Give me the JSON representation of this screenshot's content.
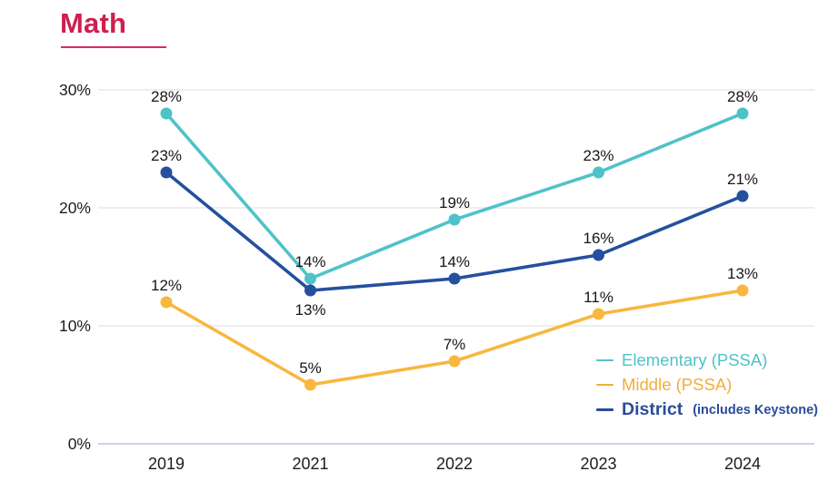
{
  "page": {
    "title": "Math",
    "title_color": "#CE1F4D",
    "underline_color": "#DB2B5B",
    "background": "#FFFFFF"
  },
  "chart_data": {
    "type": "line",
    "title": "Math",
    "categories": [
      "2019",
      "2021",
      "2022",
      "2023",
      "2024"
    ],
    "xlabel": "",
    "ylabel": "",
    "y_axis": {
      "ticks": [
        30,
        20,
        10,
        0
      ],
      "tick_suffix": "%",
      "min": 0,
      "max": 30,
      "grid": true,
      "grid_color": "#e8e8e8",
      "zero_line_color": "#c7cce7"
    },
    "data_label_suffix": "%",
    "series": [
      {
        "name": "Elementary (PSSA)",
        "color": "#4FC2C9",
        "values": [
          28,
          14,
          19,
          23,
          28
        ],
        "label_positions": [
          "above",
          "above",
          "above",
          "above",
          "above"
        ]
      },
      {
        "name": "Middle (PSSA)",
        "color": "#F8B73E",
        "values": [
          12,
          5,
          7,
          11,
          13
        ],
        "label_positions": [
          "above",
          "above",
          "above",
          "above",
          "above"
        ]
      },
      {
        "name": "District (includes Keystone)",
        "color": "#24509E",
        "values": [
          23,
          13,
          14,
          16,
          21
        ],
        "label_positions": [
          "above",
          "below",
          "above",
          "above",
          "above"
        ]
      }
    ],
    "legend": {
      "position": "bottom-right",
      "items": [
        {
          "label": "Elementary (PSSA)",
          "sublabel": "",
          "color": "#4FC2C9"
        },
        {
          "label": "Middle (PSSA)",
          "sublabel": "",
          "color": "#F0AE3C"
        },
        {
          "label": "District",
          "sublabel": "(includes Keystone)",
          "color": "#2A4C9B"
        }
      ]
    }
  }
}
